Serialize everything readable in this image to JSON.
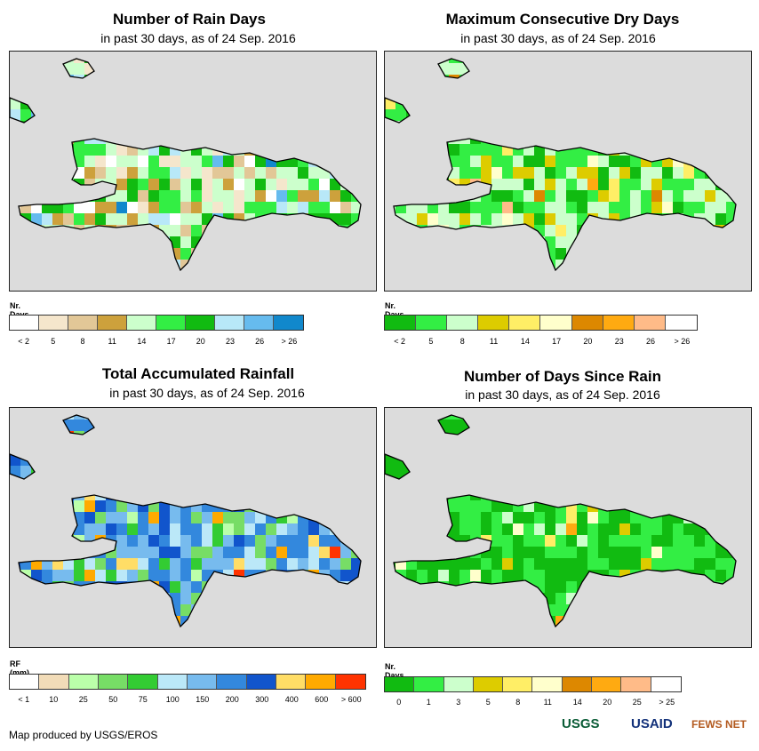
{
  "panels": {
    "p1": {
      "title": "Number of Rain Days",
      "subtitle": "in past 30 days, as of 24 Sep. 2016",
      "legend_title": "Nr. Days",
      "legend_labels": [
        "< 2",
        "5",
        "8",
        "11",
        "14",
        "17",
        "20",
        "23",
        "26",
        "> 26"
      ],
      "legend_colors": [
        "#ffffff",
        "#f5e6cc",
        "#e2c797",
        "#cda13c",
        "#ccffcc",
        "#33ee44",
        "#11bb11",
        "#b8e8f8",
        "#66bbee",
        "#1188cc"
      ]
    },
    "p2": {
      "title": "Maximum Consecutive Dry Days",
      "subtitle": "in past 30 days, as of 24 Sep. 2016",
      "legend_title": "Nr. Days",
      "legend_labels": [
        "< 2",
        "5",
        "8",
        "11",
        "14",
        "17",
        "20",
        "23",
        "26",
        "> 26"
      ],
      "legend_colors": [
        "#11bb11",
        "#33ee44",
        "#ccffcc",
        "#ddcc00",
        "#ffee66",
        "#ffffcc",
        "#dd8800",
        "#ffaa11",
        "#ffbb88",
        "#ffffff"
      ]
    },
    "p3": {
      "title": "Total Accumulated Rainfall",
      "subtitle": "in past 30 days, as of 24 Sep. 2016",
      "legend_title": "RF (mm)",
      "legend_labels": [
        "< 1",
        "10",
        "25",
        "50",
        "75",
        "100",
        "150",
        "200",
        "300",
        "400",
        "600",
        "> 600"
      ],
      "legend_colors": [
        "#ffffff",
        "#f2dcb8",
        "#bbffaa",
        "#77dd66",
        "#33cc33",
        "#bbe8f8",
        "#77bbee",
        "#3388dd",
        "#1155cc",
        "#ffdd66",
        "#ffaa00",
        "#ff3300"
      ]
    },
    "p4": {
      "title": "Number of Days Since Rain",
      "subtitle": "in past 30 days, as of 24 Sep. 2016",
      "legend_title": "Nr. Days",
      "legend_labels": [
        "0",
        "1",
        "3",
        "5",
        "8",
        "11",
        "14",
        "20",
        "25",
        "> 25"
      ],
      "legend_colors": [
        "#11bb11",
        "#33ee44",
        "#ccffcc",
        "#ddcc00",
        "#ffee66",
        "#ffffcc",
        "#dd8800",
        "#ffaa11",
        "#ffbb88",
        "#ffffff"
      ]
    }
  },
  "credit": "Map produced by USGS/EROS",
  "logos": [
    "USGS",
    "USAID",
    "FEWS NET"
  ]
}
